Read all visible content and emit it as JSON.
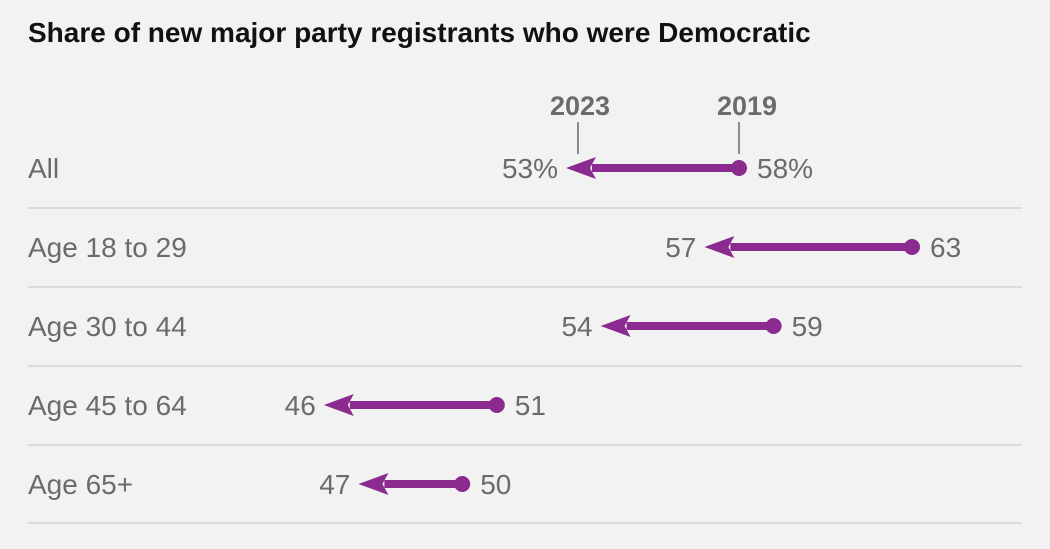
{
  "chart_data": {
    "type": "arrow-dumbbell",
    "title": "Share of new major party registrants who were Democratic",
    "legend": {
      "start_year": "2019",
      "end_year": "2023"
    },
    "categories": [
      "All",
      "Age 18 to 29",
      "Age 30 to 44",
      "Age 45 to 64",
      "Age 65+"
    ],
    "series": [
      {
        "name": "2019",
        "values": [
          58,
          63,
          59,
          51,
          50
        ]
      },
      {
        "name": "2023",
        "values": [
          53,
          57,
          54,
          46,
          47
        ]
      }
    ],
    "labels_2019": [
      "58%",
      "63",
      "59",
      "51",
      "50"
    ],
    "labels_2023": [
      "53%",
      "57",
      "54",
      "46",
      "47"
    ],
    "xlim": [
      38,
      66
    ],
    "colors": {
      "arrow": "#8b2a8f",
      "text": "#6b6b6b",
      "title": "#111111",
      "rule": "#cccccc",
      "background": "#f2f2f2"
    }
  }
}
